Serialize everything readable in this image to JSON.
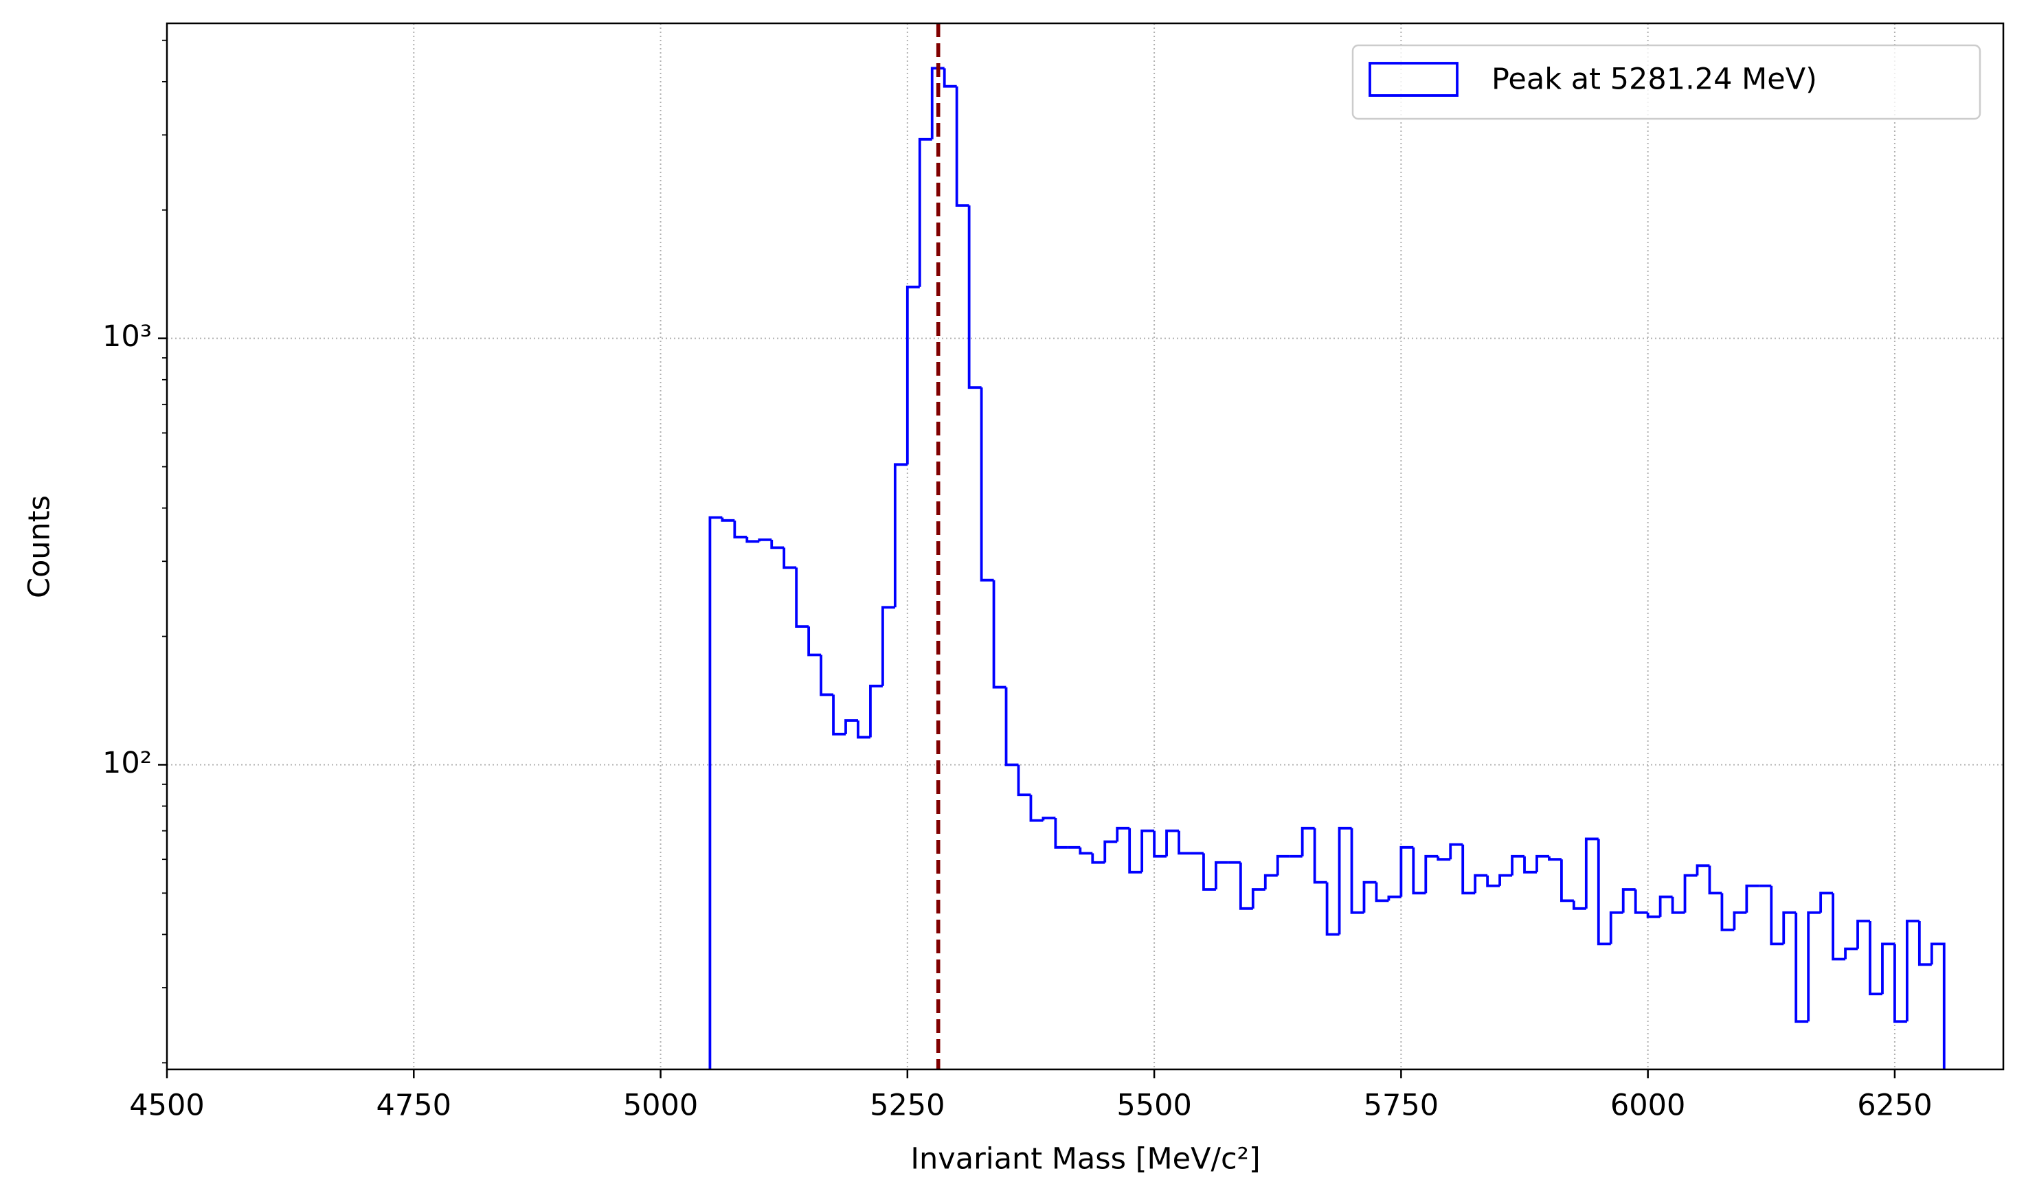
{
  "chart_data": {
    "type": "histogram",
    "xlabel": "Invariant Mass [MeV/c²]",
    "ylabel": "Counts",
    "bins": [
      5050,
      5062.5,
      5075,
      5087.5,
      5100,
      5112.5,
      5125,
      5137.5,
      5150,
      5162.5,
      5175,
      5187.5,
      5200,
      5212.5,
      5225,
      5237.5,
      5250,
      5262.5,
      5275,
      5287.5,
      5300,
      5312.5,
      5325,
      5337.5,
      5350,
      5362.5,
      5375,
      5387.5,
      5400,
      5412.5,
      5425,
      5437.5,
      5450,
      5462.5,
      5475,
      5487.5,
      5500,
      5512.5,
      5525,
      5537.5,
      5550,
      5562.5,
      5575,
      5587.5,
      5600,
      5612.5,
      5625,
      5637.5,
      5650,
      5662.5,
      5675,
      5687.5,
      5700,
      5712.5,
      5725,
      5737.5,
      5750,
      5762.5,
      5775,
      5787.5,
      5800,
      5812.5,
      5825,
      5837.5,
      5850,
      5862.5,
      5875,
      5887.5,
      5900,
      5912.5,
      5925,
      5937.5,
      5950,
      5962.5,
      5975,
      5987.5,
      6000,
      6012.5,
      6025,
      6037.5,
      6050,
      6062.5,
      6075,
      6087.5,
      6100,
      6112.5,
      6125,
      6137.5,
      6150,
      6162.5,
      6175,
      6187.5,
      6200,
      6212.5,
      6225,
      6237.5,
      6250,
      6262.5,
      6275,
      6287.5,
      6300
    ],
    "series": [
      {
        "name": "Peak at 5281.24 MeV)",
        "color": "#0000ff",
        "values": [
          380,
          374,
          342,
          334,
          337,
          323,
          290,
          211,
          181,
          146,
          118,
          127,
          116,
          153,
          234,
          506,
          1320,
          2930,
          4300,
          3900,
          2050,
          767,
          271,
          152,
          100,
          85,
          74,
          75,
          64,
          64,
          62,
          59,
          66,
          71,
          56,
          70,
          61,
          70,
          62,
          62,
          51,
          59,
          59,
          46,
          51,
          55,
          61,
          61,
          71,
          53,
          40,
          71,
          45,
          53,
          48,
          49,
          64,
          50,
          61,
          60,
          65,
          50,
          55,
          52,
          55,
          61,
          56,
          61,
          60,
          48,
          46,
          67,
          38,
          45,
          51,
          45,
          44,
          49,
          45,
          55,
          58,
          50,
          41,
          45,
          52,
          52,
          38,
          45,
          25,
          45,
          50,
          35,
          37,
          43,
          29,
          38,
          25,
          43,
          34,
          38
        ]
      }
    ],
    "vline": {
      "x": 5281.24,
      "color": "#800000"
    },
    "xlim": [
      4500,
      6360
    ],
    "xticks": [
      4500,
      4750,
      5000,
      5250,
      5500,
      5750,
      6000,
      6250
    ],
    "ylim": [
      19.3,
      5480
    ],
    "yscale": "log",
    "yticks": [
      {
        "value": 100,
        "label": "10²"
      },
      {
        "value": 1000,
        "label": "10³"
      }
    ],
    "yminorticks": [
      20,
      30,
      40,
      50,
      60,
      70,
      80,
      90,
      200,
      300,
      400,
      500,
      600,
      700,
      800,
      900,
      2000,
      3000,
      4000,
      5000
    ],
    "grid": true,
    "legend": "upper right"
  }
}
